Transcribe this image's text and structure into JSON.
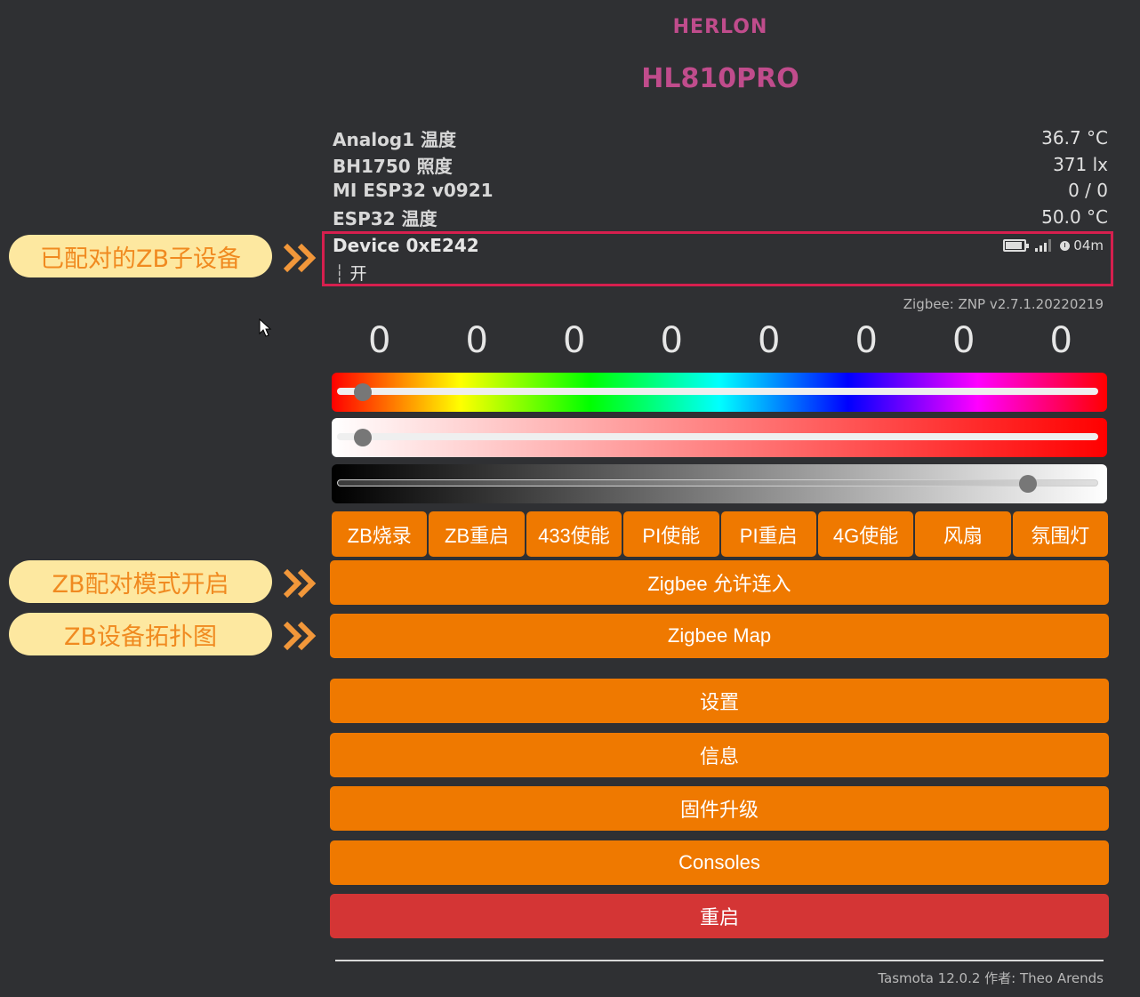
{
  "header": {
    "brand": "HERLON",
    "title": "HL810PRO"
  },
  "sensors": [
    {
      "name": "Analog1 温度",
      "value": "36.7 °C"
    },
    {
      "name": "BH1750 照度",
      "value": "371 lx"
    },
    {
      "name": "MI ESP32 v0921",
      "value": "0 / 0"
    },
    {
      "name": "ESP32 温度",
      "value": "50.0 °C"
    }
  ],
  "device": {
    "name": "Device 0xE242",
    "separator": "┆",
    "state": "开",
    "last_seen": "04m",
    "icons": [
      "battery-icon",
      "signal-icon",
      "clock-icon"
    ]
  },
  "zigbee_version": "Zigbee: ZNP v2.7.1.20220219",
  "counters": [
    "0",
    "0",
    "0",
    "0",
    "0",
    "0",
    "0",
    "0"
  ],
  "sliders": {
    "hue": {
      "value_fraction": 0.02
    },
    "saturation": {
      "value_fraction": 0.02
    },
    "brightness": {
      "value_fraction": 0.92
    }
  },
  "toggle_buttons": [
    "ZB烧录",
    "ZB重启",
    "433使能",
    "PI使能",
    "PI重启",
    "4G使能",
    "风扇",
    "氛围灯"
  ],
  "buttons": {
    "permit_join": "Zigbee 允许连入",
    "zigbee_map": "Zigbee Map",
    "settings": "设置",
    "info": "信息",
    "firmware": "固件升级",
    "consoles": "Consoles",
    "restart": "重启"
  },
  "callouts": {
    "paired_devices": "已配对的ZB子设备",
    "pairing_mode": "ZB配对模式开启",
    "topology": "ZB设备拓扑图"
  },
  "footer": "Tasmota 12.0.2 作者: Theo Arends",
  "colors": {
    "background": "#2f3033",
    "brand": "#c04c8c",
    "button": "#ef7900",
    "danger": "#d43535",
    "highlight_border": "#d61f4e",
    "callout_bg": "#fde8a0",
    "callout_text": "#f08a20"
  }
}
